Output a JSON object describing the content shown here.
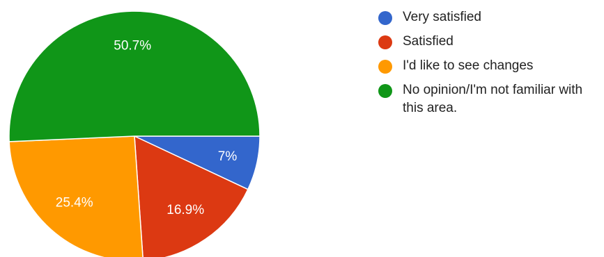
{
  "chart_data": {
    "type": "pie",
    "title": "",
    "slices": [
      {
        "label": "Very satisfied",
        "value": 7,
        "value_label": "7%",
        "color": "#3366cc"
      },
      {
        "label": "Satisfied",
        "value": 16.9,
        "value_label": "16.9%",
        "color": "#dc3912"
      },
      {
        "label": "I'd like to see changes",
        "value": 25.4,
        "value_label": "25.4%",
        "color": "#ff9900"
      },
      {
        "label": "No opinion/I'm not familiar with this area.",
        "value": 50.7,
        "value_label": "50.7%",
        "color": "#109618"
      }
    ],
    "legend_position": "right"
  }
}
